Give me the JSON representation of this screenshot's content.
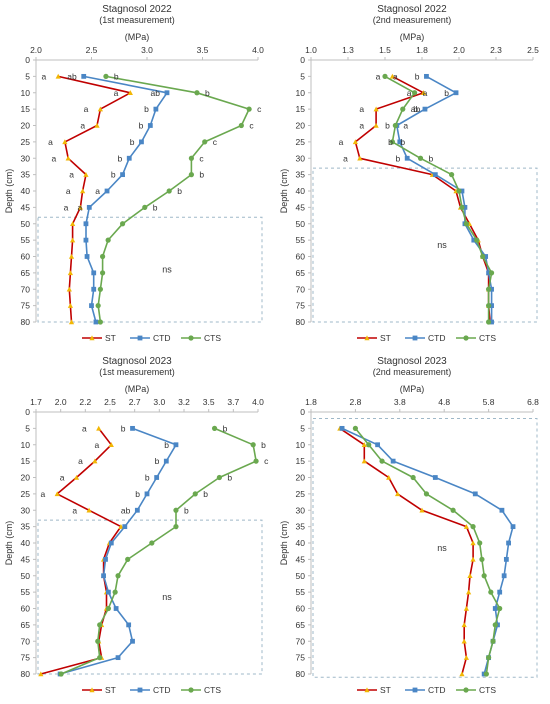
{
  "colors": {
    "ST": "#c00000",
    "CTD": "#4a86c5",
    "CTS": "#6aa84f",
    "ST_marker": "#f2b705",
    "axis": "#bfbfbf",
    "ns_box": "#9fb8c8",
    "text": "#333333"
  },
  "legend_labels": [
    "ST",
    "CTD",
    "CTS"
  ],
  "chart_data": [
    {
      "type": "line",
      "title": "Stagnosol 2022",
      "subtitle": "(1st measurement)",
      "xlabel": "(MPa)",
      "ylabel": "Depth (cm)",
      "xlim": [
        2.0,
        4.0
      ],
      "xticks": [
        "2.0",
        "2.5",
        "3.0",
        "3.5",
        "4.0"
      ],
      "ylim": [
        0,
        80
      ],
      "yticks": [
        0,
        5,
        10,
        15,
        20,
        25,
        30,
        35,
        40,
        45,
        50,
        55,
        60,
        65,
        70,
        75,
        80
      ],
      "legend": "bottom",
      "ns_label": "ns",
      "ns_depth": [
        48,
        80
      ],
      "series": [
        {
          "name": "ST",
          "depth": [
            5,
            10,
            15,
            20,
            25,
            30,
            35,
            40,
            45,
            50,
            55,
            60,
            65,
            70,
            75,
            80
          ],
          "values": [
            2.2,
            2.85,
            2.58,
            2.55,
            2.26,
            2.29,
            2.45,
            2.42,
            2.4,
            2.33,
            2.33,
            2.32,
            2.31,
            2.3,
            2.31,
            2.32
          ]
        },
        {
          "name": "CTD",
          "depth": [
            5,
            10,
            15,
            20,
            25,
            30,
            35,
            40,
            45,
            50,
            55,
            60,
            65,
            70,
            75,
            80
          ],
          "values": [
            2.43,
            3.18,
            3.08,
            3.03,
            2.95,
            2.84,
            2.78,
            2.64,
            2.48,
            2.45,
            2.45,
            2.46,
            2.52,
            2.52,
            2.5,
            2.54
          ]
        },
        {
          "name": "CTS",
          "depth": [
            5,
            10,
            15,
            20,
            25,
            30,
            35,
            40,
            45,
            50,
            55,
            60,
            65,
            70,
            75,
            80
          ],
          "values": [
            2.63,
            3.45,
            3.92,
            3.85,
            3.52,
            3.4,
            3.4,
            3.2,
            2.98,
            2.78,
            2.65,
            2.6,
            2.6,
            2.58,
            2.56,
            2.58
          ]
        }
      ],
      "annotations": [
        {
          "series": "ST",
          "depth": 5,
          "text": "a"
        },
        {
          "series": "CTD",
          "depth": 5,
          "text": "ab"
        },
        {
          "series": "CTS",
          "depth": 5,
          "text": "b"
        },
        {
          "series": "ST",
          "depth": 10,
          "text": "a"
        },
        {
          "series": "CTD",
          "depth": 10,
          "text": "ab"
        },
        {
          "series": "CTS",
          "depth": 10,
          "text": "b"
        },
        {
          "series": "ST",
          "depth": 15,
          "text": "a"
        },
        {
          "series": "CTD",
          "depth": 15,
          "text": "b"
        },
        {
          "series": "CTS",
          "depth": 15,
          "text": "c"
        },
        {
          "series": "ST",
          "depth": 20,
          "text": "a"
        },
        {
          "series": "CTD",
          "depth": 20,
          "text": "b"
        },
        {
          "series": "CTS",
          "depth": 20,
          "text": "c"
        },
        {
          "series": "ST",
          "depth": 25,
          "text": "a"
        },
        {
          "series": "CTD",
          "depth": 25,
          "text": "b"
        },
        {
          "series": "CTS",
          "depth": 25,
          "text": "c"
        },
        {
          "series": "ST",
          "depth": 30,
          "text": "a"
        },
        {
          "series": "CTD",
          "depth": 30,
          "text": "b"
        },
        {
          "series": "CTS",
          "depth": 30,
          "text": "c"
        },
        {
          "series": "ST",
          "depth": 35,
          "text": "a"
        },
        {
          "series": "CTD",
          "depth": 35,
          "text": "b"
        },
        {
          "series": "CTS",
          "depth": 35,
          "text": "b"
        },
        {
          "series": "ST",
          "depth": 40,
          "text": "a"
        },
        {
          "series": "CTD",
          "depth": 40,
          "text": "a"
        },
        {
          "series": "CTS",
          "depth": 40,
          "text": "b"
        },
        {
          "series": "ST",
          "depth": 45,
          "text": "a"
        },
        {
          "series": "CTD",
          "depth": 45,
          "text": "a"
        },
        {
          "series": "CTS",
          "depth": 45,
          "text": "b"
        }
      ]
    },
    {
      "type": "line",
      "title": "Stagnosol 2022",
      "subtitle": "(2nd measurement)",
      "xlabel": "(MPa)",
      "ylabel": "Depth (cm)",
      "xlim": [
        1.0,
        2.5
      ],
      "xticks": [
        "1.0",
        "1.3",
        "1.5",
        "1.8",
        "2.0",
        "2.3",
        "2.5"
      ],
      "ylim": [
        0,
        80
      ],
      "yticks": [
        0,
        5,
        10,
        15,
        20,
        25,
        30,
        35,
        40,
        45,
        50,
        55,
        60,
        65,
        70,
        75,
        80
      ],
      "legend": "bottom",
      "ns_label": "ns",
      "ns_depth": [
        33,
        80
      ],
      "series": [
        {
          "name": "ST",
          "depth": [
            5,
            10,
            15,
            20,
            25,
            30,
            35,
            40,
            45,
            50,
            55,
            60,
            65,
            70,
            75,
            80
          ],
          "values": [
            1.55,
            1.76,
            1.44,
            1.44,
            1.3,
            1.33,
            1.82,
            1.98,
            2.01,
            2.07,
            2.13,
            2.16,
            2.2,
            2.2,
            2.2,
            2.21
          ]
        },
        {
          "name": "CTD",
          "depth": [
            5,
            10,
            15,
            20,
            25,
            30,
            35,
            40,
            45,
            50,
            55,
            60,
            65,
            70,
            75,
            80
          ],
          "values": [
            1.78,
            1.98,
            1.77,
            1.58,
            1.6,
            1.65,
            1.84,
            2.02,
            2.04,
            2.04,
            2.1,
            2.18,
            2.2,
            2.22,
            2.22,
            2.22
          ]
        },
        {
          "name": "CTS",
          "depth": [
            5,
            10,
            15,
            20,
            25,
            30,
            35,
            40,
            45,
            50,
            55,
            60,
            65,
            70,
            75,
            80
          ],
          "values": [
            1.5,
            1.7,
            1.62,
            1.57,
            1.55,
            1.74,
            1.95,
            2.0,
            2.02,
            2.05,
            2.12,
            2.16,
            2.22,
            2.2,
            2.2,
            2.2
          ]
        }
      ],
      "annotations": [
        {
          "series": "ST",
          "depth": 5,
          "text": "a"
        },
        {
          "series": "CTS",
          "depth": 5,
          "text": "a"
        },
        {
          "series": "CTD",
          "depth": 5,
          "text": "b"
        },
        {
          "series": "ST",
          "depth": 10,
          "text": "a"
        },
        {
          "series": "CTS",
          "depth": 10,
          "text": "a"
        },
        {
          "series": "CTD",
          "depth": 10,
          "text": "b"
        },
        {
          "series": "ST",
          "depth": 15,
          "text": "a"
        },
        {
          "series": "CTS",
          "depth": 15,
          "text": "ab"
        },
        {
          "series": "CTD",
          "depth": 15,
          "text": "b"
        },
        {
          "series": "ST",
          "depth": 20,
          "text": "a"
        },
        {
          "series": "CTS",
          "depth": 20,
          "text": "a"
        },
        {
          "series": "CTD",
          "depth": 20,
          "text": "b"
        },
        {
          "series": "ST",
          "depth": 25,
          "text": "a"
        },
        {
          "series": "CTS",
          "depth": 25,
          "text": "b"
        },
        {
          "series": "CTD",
          "depth": 25,
          "text": "b"
        },
        {
          "series": "ST",
          "depth": 30,
          "text": "a"
        },
        {
          "series": "CTD",
          "depth": 30,
          "text": "b"
        },
        {
          "series": "CTS",
          "depth": 30,
          "text": "b"
        }
      ]
    },
    {
      "type": "line",
      "title": "Stagnosol 2023",
      "subtitle": "(1st measurement)",
      "xlabel": "(MPa)",
      "ylabel": "Depth (cm)",
      "xlim": [
        1.7,
        4.0
      ],
      "xticks": [
        "1.7",
        "2.0",
        "2.2",
        "2.5",
        "2.7",
        "3.0",
        "3.2",
        "3.5",
        "3.7",
        "4.0"
      ],
      "ylim": [
        0,
        80
      ],
      "yticks": [
        0,
        5,
        10,
        15,
        20,
        25,
        30,
        35,
        40,
        45,
        50,
        55,
        60,
        65,
        70,
        75,
        80
      ],
      "legend": "bottom",
      "ns_label": "ns",
      "ns_depth": [
        33,
        80
      ],
      "series": [
        {
          "name": "ST",
          "depth": [
            5,
            10,
            15,
            20,
            25,
            30,
            35,
            40,
            45,
            50,
            55,
            60,
            65,
            70,
            75,
            80
          ],
          "values": [
            2.35,
            2.48,
            2.31,
            2.12,
            1.92,
            2.25,
            2.58,
            2.46,
            2.4,
            2.4,
            2.43,
            2.43,
            2.38,
            2.35,
            2.38,
            1.75
          ]
        },
        {
          "name": "CTD",
          "depth": [
            5,
            10,
            15,
            20,
            25,
            30,
            35,
            40,
            45,
            50,
            55,
            60,
            65,
            70,
            75,
            80
          ],
          "values": [
            2.7,
            3.15,
            3.05,
            2.95,
            2.85,
            2.75,
            2.62,
            2.48,
            2.42,
            2.4,
            2.45,
            2.53,
            2.66,
            2.7,
            2.55,
            1.95
          ]
        },
        {
          "name": "CTS",
          "depth": [
            5,
            10,
            15,
            20,
            25,
            30,
            35,
            40,
            45,
            50,
            55,
            60,
            65,
            70,
            75,
            80
          ],
          "values": [
            3.55,
            3.95,
            3.98,
            3.6,
            3.35,
            3.15,
            3.15,
            2.9,
            2.65,
            2.55,
            2.52,
            2.45,
            2.36,
            2.34,
            2.36,
            1.96
          ]
        }
      ],
      "annotations": [
        {
          "series": "ST",
          "depth": 5,
          "text": "a"
        },
        {
          "series": "CTD",
          "depth": 5,
          "text": "b"
        },
        {
          "series": "CTS",
          "depth": 5,
          "text": "b"
        },
        {
          "series": "ST",
          "depth": 10,
          "text": "a"
        },
        {
          "series": "CTD",
          "depth": 10,
          "text": "b"
        },
        {
          "series": "CTS",
          "depth": 10,
          "text": "b"
        },
        {
          "series": "ST",
          "depth": 15,
          "text": "a"
        },
        {
          "series": "CTD",
          "depth": 15,
          "text": "b"
        },
        {
          "series": "CTS",
          "depth": 15,
          "text": "c"
        },
        {
          "series": "ST",
          "depth": 20,
          "text": "a"
        },
        {
          "series": "CTD",
          "depth": 20,
          "text": "b"
        },
        {
          "series": "CTS",
          "depth": 20,
          "text": "b"
        },
        {
          "series": "ST",
          "depth": 25,
          "text": "a"
        },
        {
          "series": "CTD",
          "depth": 25,
          "text": "b"
        },
        {
          "series": "CTS",
          "depth": 25,
          "text": "b"
        },
        {
          "series": "ST",
          "depth": 30,
          "text": "a"
        },
        {
          "series": "CTD",
          "depth": 30,
          "text": "ab"
        },
        {
          "series": "CTS",
          "depth": 30,
          "text": "b"
        }
      ]
    },
    {
      "type": "line",
      "title": "Stagnosol 2023",
      "subtitle": "(2nd measurement)",
      "xlabel": "(MPa)",
      "ylabel": "Depth (cm)",
      "xlim": [
        1.8,
        6.8
      ],
      "xticks": [
        "1.8",
        "2.8",
        "3.8",
        "4.8",
        "5.8",
        "6.8"
      ],
      "ylim": [
        0,
        80
      ],
      "yticks": [
        0,
        5,
        10,
        15,
        20,
        25,
        30,
        35,
        40,
        45,
        50,
        55,
        60,
        65,
        70,
        75,
        80
      ],
      "legend": "bottom",
      "ns_label": "ns",
      "ns_depth": [
        2,
        81
      ],
      "series": [
        {
          "name": "ST",
          "depth": [
            5,
            10,
            15,
            20,
            25,
            30,
            35,
            40,
            45,
            50,
            55,
            60,
            65,
            70,
            75,
            80
          ],
          "values": [
            2.45,
            3.0,
            3.0,
            3.55,
            3.75,
            4.3,
            5.3,
            5.45,
            5.45,
            5.38,
            5.35,
            5.3,
            5.25,
            5.25,
            5.3,
            5.2
          ]
        },
        {
          "name": "CTD",
          "depth": [
            5,
            10,
            15,
            20,
            25,
            30,
            35,
            40,
            45,
            50,
            55,
            60,
            65,
            70,
            75,
            80
          ],
          "values": [
            2.5,
            3.3,
            3.65,
            4.6,
            5.5,
            6.1,
            6.35,
            6.25,
            6.2,
            6.15,
            6.05,
            5.95,
            6.0,
            5.9,
            5.8,
            5.7
          ]
        },
        {
          "name": "CTS",
          "depth": [
            5,
            10,
            15,
            20,
            25,
            30,
            35,
            40,
            45,
            50,
            55,
            60,
            65,
            70,
            75,
            80
          ],
          "values": [
            2.8,
            3.1,
            3.4,
            4.1,
            4.4,
            5.0,
            5.45,
            5.6,
            5.65,
            5.7,
            5.85,
            6.05,
            5.95,
            5.9,
            5.8,
            5.75
          ]
        }
      ],
      "annotations": []
    }
  ]
}
